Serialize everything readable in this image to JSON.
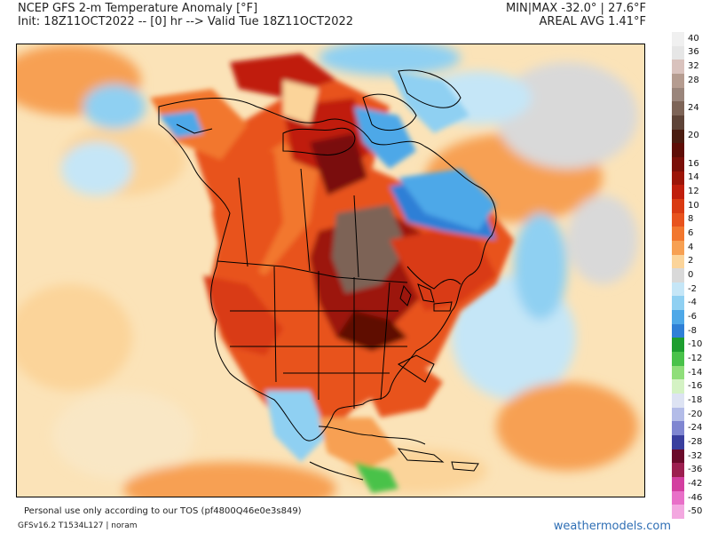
{
  "header": {
    "title": "NCEP GFS 2-m Temperature Anomaly [°F]",
    "init_line": "Init: 18Z11OCT2022 -- [0] hr --> Valid Tue 18Z11OCT2022",
    "minmax": "MIN|MAX -32.0° | 27.6°F",
    "areal_avg": "AREAL AVG 1.41°F"
  },
  "map": {
    "region": "North America",
    "variable": "2-m Temperature Anomaly"
  },
  "colorbar": {
    "levels": [
      {
        "label": "40",
        "color": "#f0f0f0"
      },
      {
        "label": "36",
        "color": "#e6e6e6"
      },
      {
        "label": "32",
        "color": "#d9c2bd"
      },
      {
        "label": "28",
        "color": "#b59c90"
      },
      {
        "label": "",
        "color": "#9a857b"
      },
      {
        "label": "24",
        "color": "#7d6457"
      },
      {
        "label": "",
        "color": "#5e4438"
      },
      {
        "label": "20",
        "color": "#4a1c10"
      },
      {
        "label": "",
        "color": "#5e0d06"
      },
      {
        "label": "16",
        "color": "#7a0f08"
      },
      {
        "label": "14",
        "color": "#9c1508"
      },
      {
        "label": "12",
        "color": "#c01e0c"
      },
      {
        "label": "10",
        "color": "#d93a12"
      },
      {
        "label": "8",
        "color": "#e8531d"
      },
      {
        "label": "6",
        "color": "#f2772e"
      },
      {
        "label": "4",
        "color": "#f7a052"
      },
      {
        "label": "2",
        "color": "#fbd49a"
      },
      {
        "label": "0",
        "color": "#d9d9d9"
      },
      {
        "label": "-2",
        "color": "#c5e6f7"
      },
      {
        "label": "-4",
        "color": "#8fd0f2"
      },
      {
        "label": "-6",
        "color": "#4ea8e8"
      },
      {
        "label": "-8",
        "color": "#2f7fd6"
      },
      {
        "label": "-10",
        "color": "#1d9e2f"
      },
      {
        "label": "-12",
        "color": "#49c24a"
      },
      {
        "label": "-14",
        "color": "#8fde7a"
      },
      {
        "label": "-16",
        "color": "#d4f2c4"
      },
      {
        "label": "-18",
        "color": "#dde3f3"
      },
      {
        "label": "-20",
        "color": "#b3bce8"
      },
      {
        "label": "-24",
        "color": "#7f86d1"
      },
      {
        "label": "-28",
        "color": "#3a3f9e"
      },
      {
        "label": "-32",
        "color": "#6a0a2a"
      },
      {
        "label": "-36",
        "color": "#9c1f4f"
      },
      {
        "label": "-42",
        "color": "#d33fa0"
      },
      {
        "label": "-46",
        "color": "#e870c8"
      },
      {
        "label": "-50",
        "color": "#f3a8e0"
      }
    ]
  },
  "footer": {
    "tos": "Personal use only according to our TOS (pf4800Q46e0e3s849)",
    "version": "GFSv16.2 T1534L127 | noram",
    "brand": "weathermodels.com"
  }
}
